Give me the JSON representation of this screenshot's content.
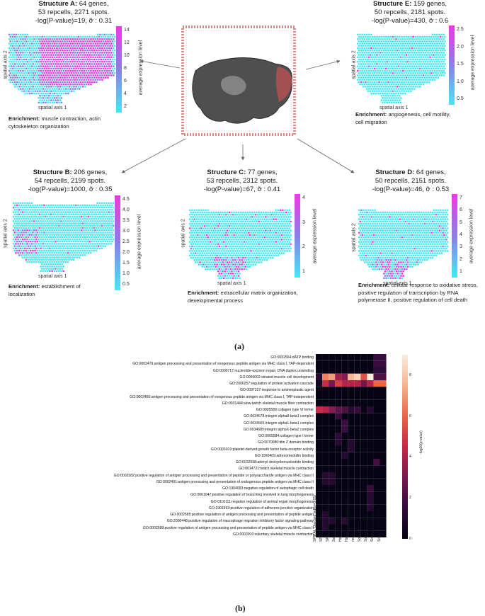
{
  "panel_a_label": "(a)",
  "panel_b_label": "(b)",
  "structures": [
    {
      "id": "A",
      "title_bold": "Structure A:",
      "title_rest": "64 genes,",
      "line2": "53 repcells, 2271 spots.",
      "line3": "-log(P-value)=19, ỡ : 0.31",
      "enrichment_label": "Enrichment:",
      "enrichment_text": "muscle contraction, actin cytoskeleton organization",
      "x_axis": "spatial axis 1",
      "y_axis": "spatial axis 2",
      "cbar_label": "average expression level",
      "cbar_ticks": [
        "14",
        "12",
        "10",
        "8",
        "6",
        "4",
        "2"
      ],
      "color_mode": "high"
    },
    {
      "id": "E",
      "title_bold": "Structure E:",
      "title_rest": "159 genes,",
      "line2": "50 repcells, 2181 spots.",
      "line3": "-log(P-value)=430, ỡ : 0.6",
      "enrichment_label": "Enrichment:",
      "enrichment_text": "angiogenesis, cell motility, cell migration",
      "x_axis": "spatial axis 1",
      "y_axis": "spatial axis 2",
      "cbar_label": "average expression level",
      "cbar_ticks": [
        "2.5",
        "2.0",
        "1.5",
        "1.0",
        "0.5"
      ],
      "color_mode": "low"
    },
    {
      "id": "B",
      "title_bold": "Structure B:",
      "title_rest": "206 genes,",
      "line2": "54 repcells, 2199 spots.",
      "line3": "-log(P-value)=1000, ỡ : 0.35",
      "enrichment_label": "Enrichment:",
      "enrichment_text": "establishment of localization",
      "x_axis": "spatial axis 1",
      "y_axis": "spatial axis 2",
      "cbar_label": "average expression level",
      "cbar_ticks": [
        "4.5",
        "4.0",
        "3.5",
        "3.0",
        "2.5",
        "2.0",
        "1.5",
        "1.0",
        "0.5"
      ],
      "color_mode": "low"
    },
    {
      "id": "C",
      "title_bold": "Structure C:",
      "title_rest": "77 genes,",
      "line2": "53 repcells, 2312 spots.",
      "line3": "-log(P-value)=67, ỡ : 0.41",
      "enrichment_label": "Enrichment:",
      "enrichment_text": "extracellular matrix organization, developmental process",
      "x_axis": "spatial axis 1",
      "y_axis": "spatial axis 2",
      "cbar_label": "average expression level",
      "cbar_ticks": [
        "4",
        "3",
        "2",
        "1"
      ],
      "color_mode": "low"
    },
    {
      "id": "D",
      "title_bold": "Structure D:",
      "title_rest": "64 genes,",
      "line2": "50 repcells, 2151 spots.",
      "line3": "-log(P-value)=46, ỡ : 0.53",
      "enrichment_label": "Enrichment:",
      "enrichment_text": "cellular response to oxidative stress, positive regulation of transcription by RNA polymerase II, positive regulation of cell death",
      "x_axis": "spatial axis 1",
      "y_axis": "spatial axis 2",
      "cbar_label": "average expression level",
      "cbar_ticks": [
        "7",
        "6",
        "5",
        "4",
        "3",
        "2",
        "1"
      ],
      "color_mode": "low"
    }
  ],
  "colors": {
    "low": "#44e8f4",
    "mid": "#8a7fe8",
    "high": "#f236e8",
    "tissue": "#5a5a5a",
    "frame": "#d98a8a",
    "arrow": "#666666"
  },
  "chart_data": {
    "type": "heatmap",
    "colorbar_label": "-log10(p-value)",
    "colorbar_ticks": [
      0,
      2,
      4,
      6,
      8
    ],
    "zlim": [
      0,
      9
    ],
    "columns": [
      "SPIRAL (Jaccard index=0.05)",
      "SPIRAL (Jaccard index=0.5)",
      "SPIRAL (Jaccard index=0.75)",
      "Seurat",
      "Hotspot (n_neighbors=30)",
      "Hotspot (n_neighbors=300)",
      "nnSVG",
      "SpatialDE (C=3)",
      "SpatialDE (C=5)",
      "SingleCellHaystack (k=3)",
      "SingleCellHaystack (k=5)"
    ],
    "rows": [
      "GO:0032564:dATP binding",
      "GO:0002479:antigen processing and presentation of exogenous peptide antigen via MHC class I, TAP-dependent",
      "GO:0000717:nucleotide-excision repair, DNA duplex unwinding",
      "GO:0055002:striated muscle cell development",
      "GO:2000257:regulation of protein activation cascade",
      "GO:0097327:response to antineoplastic agent",
      "GO:0002480:antigen processing and presentation of exogenous peptide antigen via MHC class I, TAP-independent",
      "GO:0031444:slow-twitch skeletal muscle fiber contraction",
      "GO:0005589:collagen type VI trimer",
      "GO:0034678:integrin alpha8-beta1 complex",
      "GO:0034665:integrin alpha1-beta1 complex",
      "GO:0034689:integrin alphaX-beta2 complex",
      "GO:0005584:collagen type I trimer",
      "GO:0070080:titin Z domain binding",
      "GO:0005019:platelet-derived growth factor beta-receptor activity",
      "GO:1990409:adrenomedullin binding",
      "GO:0032558:adenyl deoxyribonucleotide binding",
      "GO:0014721:twitch skeletal muscle contraction",
      "GO:0002582:positive regulation of antigen processing and presentation of peptide or polysaccharide antigen via MHC class II",
      "GO:0002491:antigen processing and presentation of endogenous peptide antigen via MHC class II",
      "GO:1904093:negative regulation of autophagic cell death",
      "GO:0061047:positive regulation of branching involved in lung morphogenesis",
      "GO:0110111:negative regulation of animal organ morphogenesis",
      "GO:1903393:positive regulation of adherens junction organization",
      "GO:0002585:positive regulation of antigen processing and presentation of peptide antigen",
      "GO:2000448:positive regulation of macrophage migration inhibitory factor signaling pathway",
      "GO:0002588:positive regulation of antigen processing and presentation of peptide antigen via MHC class II",
      "GO:0003010:voluntary skeletal muscle contraction"
    ],
    "values": [
      [
        0,
        0,
        0,
        0,
        0,
        0,
        0,
        0,
        0,
        1.5,
        1.5
      ],
      [
        0,
        0,
        0,
        0,
        0,
        0,
        0,
        0,
        0,
        1.5,
        1.5
      ],
      [
        0,
        0,
        0,
        0,
        0,
        0,
        0,
        0,
        0,
        1.2,
        1.2
      ],
      [
        1.0,
        7.0,
        7.5,
        4.0,
        3.5,
        8.0,
        8.5,
        6.0,
        9.0,
        2.0,
        2.0
      ],
      [
        0.5,
        5.0,
        3.0,
        5.5,
        4.5,
        4.5,
        4.5,
        3.0,
        4.5,
        6.5,
        6.5
      ],
      [
        0,
        0,
        0,
        0,
        0,
        0,
        0,
        0,
        0,
        0,
        0
      ],
      [
        0,
        0,
        0,
        0,
        0,
        0,
        0,
        0,
        0,
        0,
        0
      ],
      [
        0,
        0,
        0,
        0,
        0,
        0,
        0,
        0,
        0,
        0,
        0
      ],
      [
        5.0,
        4.5,
        3.5,
        2.5,
        2.0,
        1.0,
        1.5,
        0,
        1.0,
        0,
        0
      ],
      [
        0,
        0,
        0,
        1.5,
        0,
        0,
        0,
        0,
        0,
        0,
        0
      ],
      [
        0,
        0,
        0,
        0,
        1.5,
        0,
        0,
        0,
        0,
        0,
        0
      ],
      [
        0,
        0,
        0,
        0,
        1.5,
        0,
        0,
        0,
        0,
        0,
        0
      ],
      [
        0,
        0,
        0,
        1.2,
        0,
        0,
        0,
        0,
        0,
        0,
        0
      ],
      [
        0,
        0,
        0,
        1.0,
        0,
        1.0,
        0,
        0,
        0,
        0,
        0
      ],
      [
        0,
        0,
        0,
        0,
        0,
        1.0,
        0,
        0,
        0,
        0,
        0
      ],
      [
        0,
        0,
        0,
        0,
        1.0,
        0,
        0,
        0,
        0,
        0,
        0
      ],
      [
        0,
        0,
        0,
        0,
        0,
        0,
        0,
        0,
        0,
        1.8,
        0
      ],
      [
        0,
        0,
        0,
        0,
        0,
        0,
        0,
        0,
        0,
        0,
        0
      ],
      [
        0,
        1.0,
        1.0,
        0,
        0,
        0,
        0,
        0,
        0,
        0,
        0
      ],
      [
        0,
        1.0,
        1.0,
        0,
        0,
        0,
        0,
        0,
        0,
        0,
        0
      ],
      [
        0,
        0,
        0,
        0,
        0,
        0,
        0,
        0,
        1.5,
        0,
        0
      ],
      [
        0,
        0,
        0,
        0,
        0,
        0,
        0,
        0,
        1.0,
        0,
        0
      ],
      [
        0,
        0,
        0,
        0,
        0,
        0,
        0,
        0,
        1.0,
        0,
        0
      ],
      [
        0,
        0,
        0,
        0,
        0,
        0,
        0,
        0,
        1.0,
        0,
        0
      ],
      [
        0,
        1.0,
        0,
        0,
        0,
        0,
        0,
        0,
        0,
        0,
        0
      ],
      [
        0,
        1.0,
        1.0,
        0,
        1.2,
        0,
        0,
        0,
        0,
        0,
        0
      ],
      [
        0,
        1.0,
        0,
        0,
        0,
        0,
        0,
        0,
        0,
        0,
        0
      ],
      [
        0,
        0,
        0,
        0,
        0,
        0,
        0,
        0,
        0,
        0,
        0
      ]
    ]
  }
}
